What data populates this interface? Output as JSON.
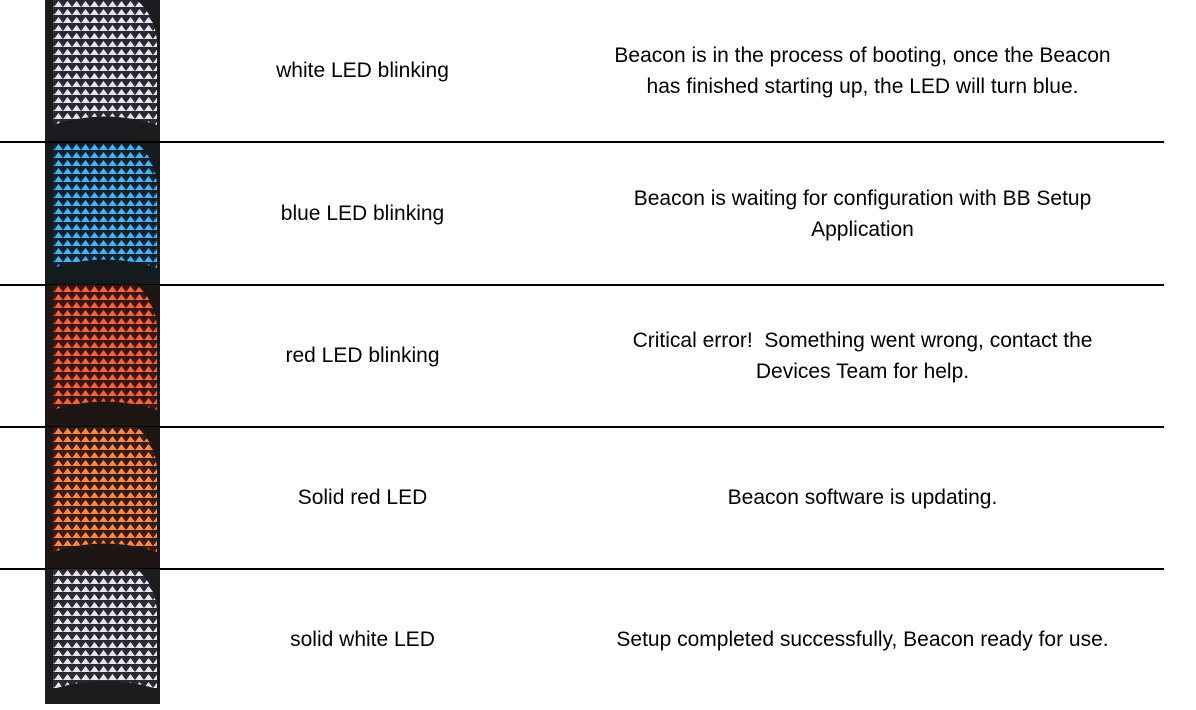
{
  "table": {
    "rows": [
      {
        "state": "white LED blinking",
        "description": "Beacon is in the process of booting, once the Beacon has finished starting up, the LED will turn blue."
      },
      {
        "state": "blue LED blinking",
        "description": "Beacon is waiting for configuration with BB Setup Application"
      },
      {
        "state": "red LED blinking",
        "description": "Critical error!  Something went wrong, contact the Devices Team for help."
      },
      {
        "state": "Solid red LED",
        "description": "Beacon software is updating."
      },
      {
        "state": "solid white LED",
        "description": "Setup completed successfully, Beacon ready for use."
      }
    ]
  }
}
